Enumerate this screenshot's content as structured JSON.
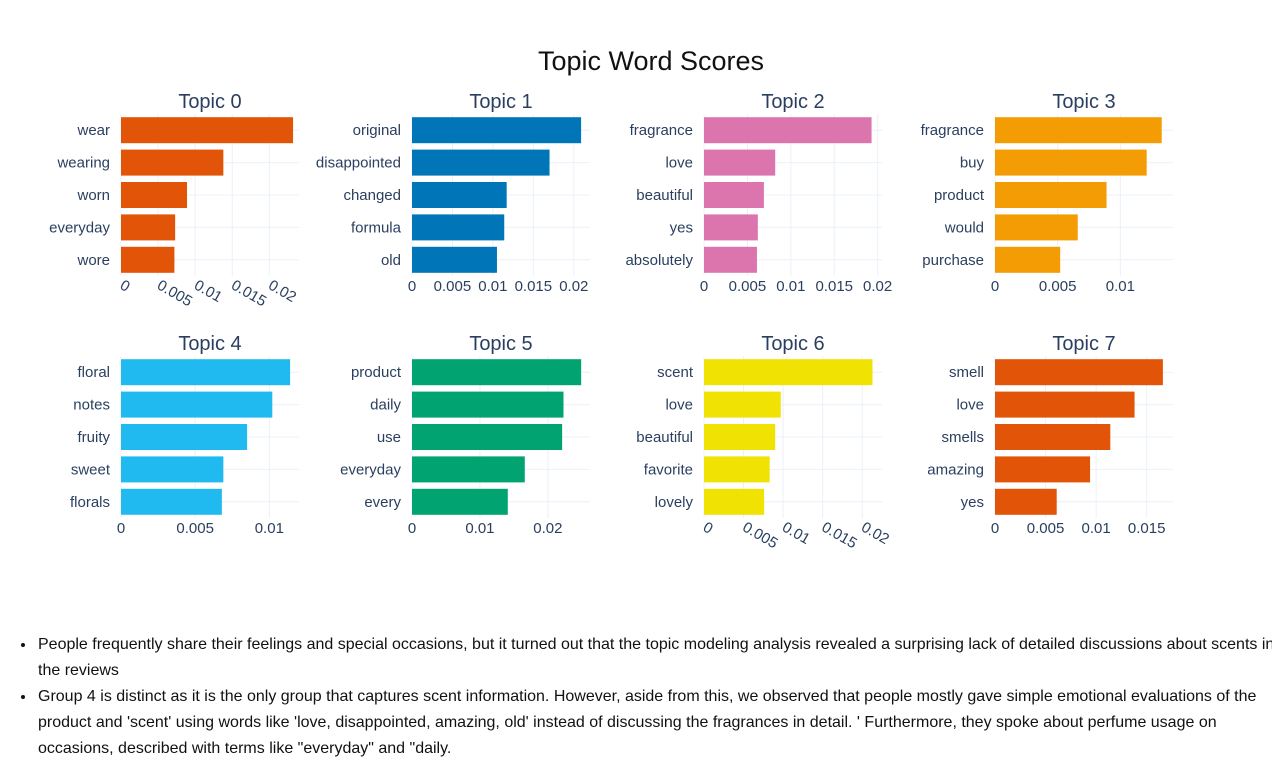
{
  "figure": {
    "title": "Topic Word Scores"
  },
  "chart_data": [
    {
      "type": "bar",
      "title": "Topic 0",
      "color": "#e25407",
      "categories": [
        "wear",
        "wearing",
        "worn",
        "everyday",
        "wore"
      ],
      "values": [
        0.0232,
        0.0138,
        0.0089,
        0.0073,
        0.0072
      ],
      "xlim": [
        0,
        0.024
      ],
      "xticks": [
        "0",
        "0.005",
        "0.01",
        "0.015",
        "0.02"
      ],
      "xtick_values": [
        0,
        0.005,
        0.01,
        0.015,
        0.02
      ],
      "tick_rotation": 30
    },
    {
      "type": "bar",
      "title": "Topic 1",
      "color": "#0075b8",
      "categories": [
        "original",
        "disappointed",
        "changed",
        "formula",
        "old"
      ],
      "values": [
        0.0209,
        0.017,
        0.0117,
        0.0114,
        0.0105
      ],
      "xlim": [
        0,
        0.022
      ],
      "xticks": [
        "0",
        "0.005",
        "0.01",
        "0.015",
        "0.02"
      ],
      "xtick_values": [
        0,
        0.005,
        0.01,
        0.015,
        0.02
      ],
      "tick_rotation": 0
    },
    {
      "type": "bar",
      "title": "Topic 2",
      "color": "#dc75ad",
      "categories": [
        "fragrance",
        "love",
        "beautiful",
        "yes",
        "absolutely"
      ],
      "values": [
        0.0193,
        0.0082,
        0.0069,
        0.0062,
        0.0061
      ],
      "xlim": [
        0,
        0.0205
      ],
      "xticks": [
        "0",
        "0.005",
        "0.01",
        "0.015",
        "0.02"
      ],
      "xtick_values": [
        0,
        0.005,
        0.01,
        0.015,
        0.02
      ],
      "tick_rotation": 0
    },
    {
      "type": "bar",
      "title": "Topic 3",
      "color": "#f49c03",
      "categories": [
        "fragrance",
        "buy",
        "product",
        "would",
        "purchase"
      ],
      "values": [
        0.0133,
        0.0121,
        0.0089,
        0.0066,
        0.0052
      ],
      "xlim": [
        0,
        0.0142
      ],
      "xticks": [
        "0",
        "0.005",
        "0.01"
      ],
      "xtick_values": [
        0,
        0.005,
        0.01
      ],
      "tick_rotation": 0
    },
    {
      "type": "bar",
      "title": "Topic 4",
      "color": "#21baf0",
      "categories": [
        "floral",
        "notes",
        "fruity",
        "sweet",
        "florals"
      ],
      "values": [
        0.0114,
        0.0102,
        0.0085,
        0.0069,
        0.0068
      ],
      "xlim": [
        0,
        0.012
      ],
      "xticks": [
        "0",
        "0.005",
        "0.01"
      ],
      "xtick_values": [
        0,
        0.005,
        0.01
      ],
      "tick_rotation": 0
    },
    {
      "type": "bar",
      "title": "Topic 5",
      "color": "#01a370",
      "categories": [
        "product",
        "daily",
        "use",
        "everyday",
        "every"
      ],
      "values": [
        0.0249,
        0.0223,
        0.0221,
        0.0166,
        0.0141
      ],
      "xlim": [
        0,
        0.0262
      ],
      "xticks": [
        "0",
        "0.01",
        "0.02"
      ],
      "xtick_values": [
        0,
        0.01,
        0.02
      ],
      "tick_rotation": 0
    },
    {
      "type": "bar",
      "title": "Topic 6",
      "color": "#f0e303",
      "categories": [
        "scent",
        "love",
        "beautiful",
        "favorite",
        "lovely"
      ],
      "values": [
        0.0213,
        0.0097,
        0.009,
        0.0083,
        0.0076
      ],
      "xlim": [
        0,
        0.0225
      ],
      "xticks": [
        "0",
        "0.005",
        "0.01",
        "0.015",
        "0.02"
      ],
      "xtick_values": [
        0,
        0.005,
        0.01,
        0.015,
        0.02
      ],
      "tick_rotation": 30
    },
    {
      "type": "bar",
      "title": "Topic 7",
      "color": "#e25407",
      "categories": [
        "smell",
        "love",
        "smells",
        "amazing",
        "yes"
      ],
      "values": [
        0.0166,
        0.0138,
        0.0114,
        0.0094,
        0.0061
      ],
      "xlim": [
        0,
        0.0176
      ],
      "xticks": [
        "0",
        "0.005",
        "0.01",
        "0.015"
      ],
      "xtick_values": [
        0,
        0.005,
        0.01,
        0.015
      ],
      "tick_rotation": 0
    }
  ],
  "notes": [
    "People frequently share their feelings and special occasions, but it turned out that the topic modeling analysis revealed a surprising lack of detailed discussions about scents in the reviews",
    "Group 4 is distinct as it is the only group that captures scent information. However, aside from this, we observed that people mostly gave simple emotional evaluations of the product and 'scent' using words like 'love, disappointed, amazing, old' instead of discussing the fragrances in detail. ' Furthermore, they spoke about perfume usage on occasions, described with terms like \"everyday\" and \"daily."
  ]
}
